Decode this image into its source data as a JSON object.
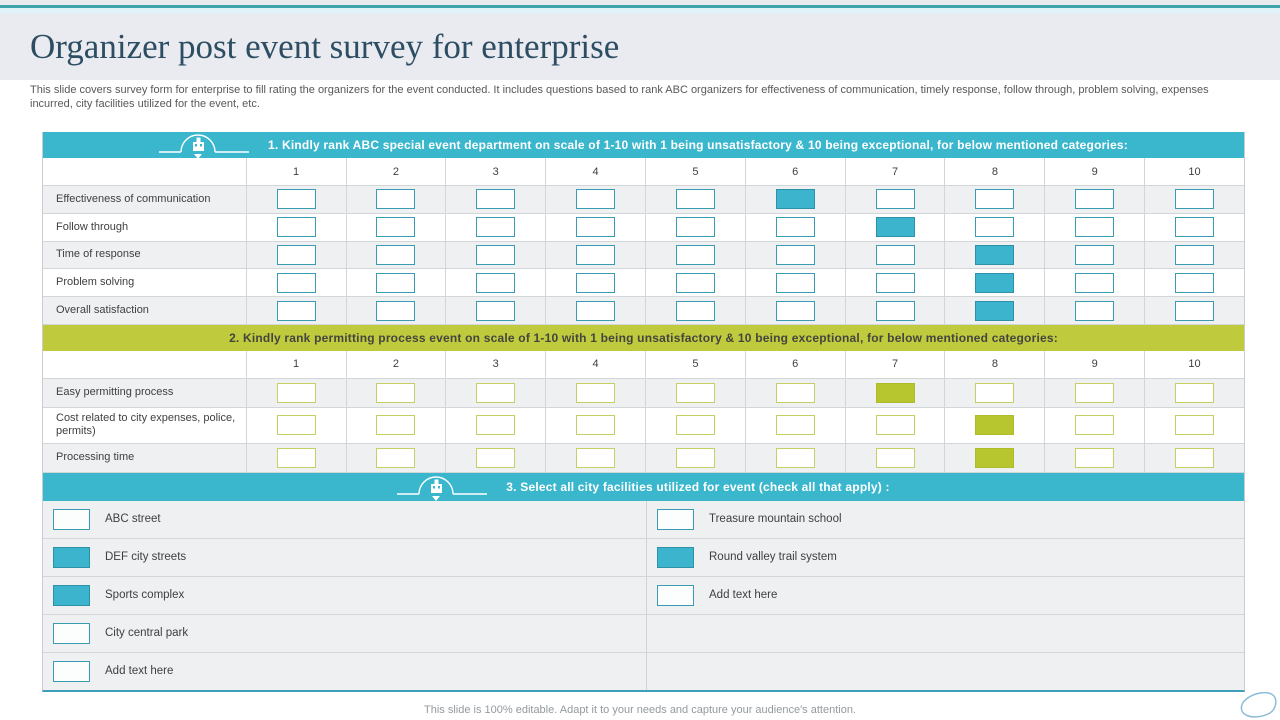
{
  "title": "Organizer post event survey for enterprise",
  "description": "This slide covers survey form for enterprise to fill rating the organizers for the event conducted. It includes questions based to rank ABC organizers for effectiveness of communication, timely response, follow through, problem solving, expenses incurred, city facilities utilized for the event, etc.",
  "scale": [
    "1",
    "2",
    "3",
    "4",
    "5",
    "6",
    "7",
    "8",
    "9",
    "10"
  ],
  "section1": {
    "header": "1. Kindly rank ABC special event department on scale of 1-10 with 1 being unsatisfactory  &  10 being exceptional, for below mentioned categories:",
    "rows": [
      {
        "label": "Effectiveness of communication",
        "checked": 6
      },
      {
        "label": "Follow through",
        "checked": 7
      },
      {
        "label": "Time of response",
        "checked": 8
      },
      {
        "label": "Problem solving",
        "checked": 8
      },
      {
        "label": "Overall satisfaction",
        "checked": 8
      }
    ]
  },
  "section2": {
    "header": "2. Kindly rank permitting process event on scale of 1-10 with 1 being unsatisfactory  &  10 being exceptional, for below mentioned categories:",
    "rows": [
      {
        "label": "Easy permitting process",
        "checked": 7
      },
      {
        "label": "Cost related to city expenses, police, permits)",
        "checked": 8
      },
      {
        "label": "Processing time",
        "checked": 8
      }
    ]
  },
  "section3": {
    "header": "3. Select all city facilities utilized for event (check all that apply) :",
    "left": [
      {
        "label": "ABC street",
        "checked": false
      },
      {
        "label": "DEF city streets",
        "checked": true
      },
      {
        "label": "Sports complex",
        "checked": true
      },
      {
        "label": "City central park",
        "checked": false
      },
      {
        "label": "Add text here",
        "checked": false
      }
    ],
    "right": [
      {
        "label": "Treasure mountain school",
        "checked": false
      },
      {
        "label": "Round valley trail system",
        "checked": true
      },
      {
        "label": "Add text here",
        "checked": false
      },
      {
        "label": "",
        "checked": null
      },
      {
        "label": "",
        "checked": null
      }
    ]
  },
  "footer": "This slide is 100% editable. Adapt it to your needs and capture your audience's attention.",
  "icons": {
    "section1_header": "capitol-dome-icon",
    "section3_header": "capitol-dome-icon",
    "bottom_right": "speech-bubble-icon"
  },
  "colors": {
    "teal_header": "#3ab7cd",
    "green_header": "#bfcb3d",
    "teal_checkbox_fill": "#3cb4ce",
    "green_checkbox_fill": "#b7c52f",
    "title_text": "#2d4d63",
    "top_accent_line": "#3fa3ab"
  }
}
